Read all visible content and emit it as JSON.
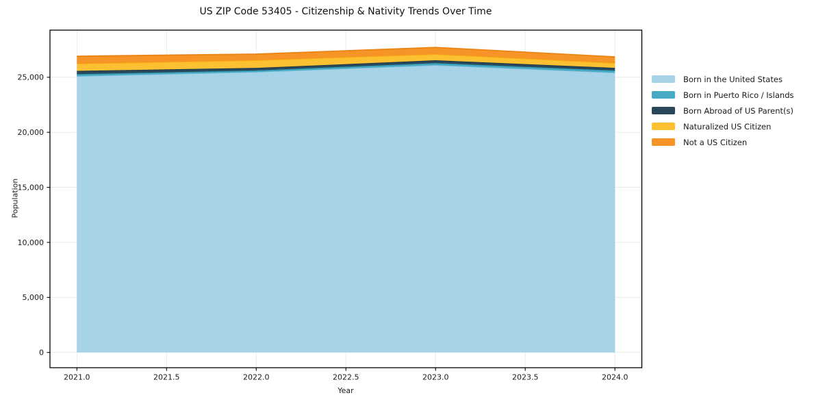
{
  "figure": {
    "title": "US ZIP Code 53405 - Citizenship & Nativity Trends Over Time"
  },
  "chart_data": {
    "type": "area",
    "stacked": true,
    "title": "US ZIP Code 53405 - Citizenship & Nativity Trends Over Time",
    "xlabel": "Year",
    "ylabel": "Population",
    "x": [
      2021,
      2022,
      2023,
      2024
    ],
    "series": [
      {
        "name": "Born in the United States",
        "color": "#A7D3E9",
        "line_color": "#7FBFDE",
        "values": [
          25100,
          25480,
          26100,
          25420
        ]
      },
      {
        "name": "Born in Puerto Rico / Islands",
        "color": "#45AAC2",
        "line_color": "#2E96AE",
        "values": [
          180,
          140,
          190,
          190
        ]
      },
      {
        "name": "Born Abroad of US Parent(s)",
        "color": "#29485C",
        "line_color": "#1C3648",
        "values": [
          300,
          230,
          250,
          240
        ]
      },
      {
        "name": "Naturalized US Citizen",
        "color": "#FCC133",
        "line_color": "#F7B00F",
        "values": [
          650,
          690,
          550,
          440
        ]
      },
      {
        "name": "Not a US Citizen",
        "color": "#F79428",
        "line_color": "#EC8414",
        "values": [
          680,
          560,
          620,
          560
        ]
      }
    ],
    "x_tick_labels": [
      "2021.0",
      "2021.5",
      "2022.0",
      "2022.5",
      "2023.0",
      "2023.5",
      "2024.0"
    ],
    "x_ticks": [
      2021.0,
      2021.5,
      2022.0,
      2022.5,
      2023.0,
      2023.5,
      2024.0
    ],
    "y_tick_labels": [
      "0",
      "5,000",
      "10,000",
      "15,000",
      "20,000",
      "25,000"
    ],
    "y_ticks": [
      0,
      5000,
      10000,
      15000,
      20000,
      25000
    ],
    "xlim": [
      2020.85,
      2024.15
    ],
    "ylim": [
      -1385,
      29280
    ],
    "grid": true,
    "grid_color": "#E8E8E8",
    "spine_color": "#000000",
    "tick_label_color": "#191919",
    "legend_position": "right-outside"
  }
}
